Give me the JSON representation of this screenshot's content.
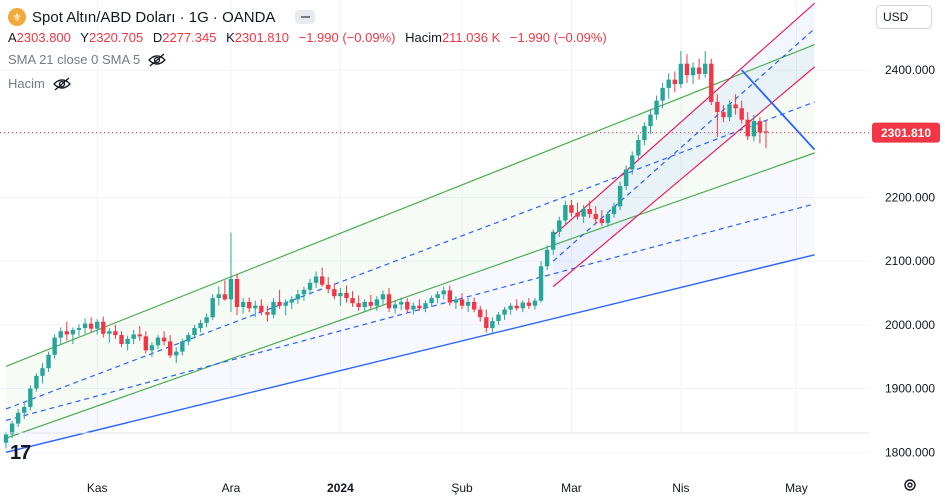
{
  "symbol": {
    "title": "Spot Altın/ABD Doları · 1G · OANDA",
    "icon": "gold-coin-icon"
  },
  "ohlc": {
    "open_label": "A",
    "open": "2303.800",
    "high_label": "Y",
    "high": "2320.705",
    "low_label": "D",
    "low": "2277.345",
    "close_label": "K",
    "close": "2301.810",
    "change": "−1.990 (−0.09%)",
    "volume_label": "Hacim",
    "volume": "211.036 K",
    "volume_change": "−1.990 (−0.09%)"
  },
  "indicators": [
    {
      "label": "SMA 21 close 0 SMA 5"
    },
    {
      "label": "Hacim"
    }
  ],
  "currency": "USD",
  "colors": {
    "up": "#26a69a",
    "down": "#f23645",
    "green_channel": "#4caf50",
    "blue": "#2962ff",
    "red_channel": "#e91e63",
    "grid": "#f0f3fa"
  },
  "chart_data": {
    "type": "candlestick",
    "title": "Spot Altın/ABD Doları · 1G · OANDA",
    "ylim": [
      1780,
      2510
    ],
    "y_ticks": [
      "1800.000",
      "1900.000",
      "2000.000",
      "2100.000",
      "2200.000",
      "2300.000",
      "2400.000"
    ],
    "x_ticks": [
      "Kas",
      "Ara",
      "2024",
      "Şub",
      "Mar",
      "Nis",
      "May"
    ],
    "last_price": "2301.810",
    "candles": [
      [
        1815,
        1832,
        1806,
        1828
      ],
      [
        1828,
        1849,
        1822,
        1845
      ],
      [
        1845,
        1868,
        1840,
        1862
      ],
      [
        1862,
        1878,
        1852,
        1871
      ],
      [
        1871,
        1905,
        1866,
        1900
      ],
      [
        1900,
        1924,
        1895,
        1920
      ],
      [
        1920,
        1940,
        1908,
        1932
      ],
      [
        1932,
        1958,
        1926,
        1953
      ],
      [
        1953,
        1985,
        1947,
        1980
      ],
      [
        1980,
        1996,
        1970,
        1990
      ],
      [
        1990,
        2005,
        1975,
        1985
      ],
      [
        1985,
        1996,
        1970,
        1992
      ],
      [
        1992,
        2001,
        1982,
        1995
      ],
      [
        1995,
        2010,
        1986,
        2002
      ],
      [
        2002,
        2012,
        1988,
        1994
      ],
      [
        1994,
        2009,
        1985,
        2005
      ],
      [
        2005,
        2013,
        1980,
        1986
      ],
      [
        1986,
        1995,
        1972,
        1990
      ],
      [
        1990,
        2000,
        1978,
        1984
      ],
      [
        1984,
        1990,
        1965,
        1970
      ],
      [
        1970,
        1983,
        1960,
        1978
      ],
      [
        1978,
        1992,
        1970,
        1985
      ],
      [
        1985,
        1998,
        1975,
        1982
      ],
      [
        1982,
        1990,
        1955,
        1960
      ],
      [
        1960,
        1973,
        1950,
        1968
      ],
      [
        1968,
        1984,
        1962,
        1980
      ],
      [
        1980,
        1990,
        1968,
        1974
      ],
      [
        1974,
        1984,
        1948,
        1952
      ],
      [
        1952,
        1965,
        1940,
        1958
      ],
      [
        1958,
        1978,
        1952,
        1974
      ],
      [
        1974,
        1988,
        1968,
        1984
      ],
      [
        1984,
        2000,
        1979,
        1995
      ],
      [
        1995,
        2008,
        1988,
        2003
      ],
      [
        2003,
        2018,
        1996,
        2012
      ],
      [
        2012,
        2048,
        2008,
        2042
      ],
      [
        2042,
        2060,
        2030,
        2048
      ],
      [
        2048,
        2070,
        2038,
        2040
      ],
      [
        2040,
        2145,
        2020,
        2072
      ],
      [
        2072,
        2080,
        2015,
        2028
      ],
      [
        2028,
        2042,
        2018,
        2036
      ],
      [
        2036,
        2043,
        2020,
        2026
      ],
      [
        2026,
        2038,
        2012,
        2030
      ],
      [
        2030,
        2040,
        2015,
        2020
      ],
      [
        2020,
        2030,
        2005,
        2016
      ],
      [
        2016,
        2042,
        2010,
        2036
      ],
      [
        2036,
        2055,
        2025,
        2030
      ],
      [
        2030,
        2040,
        2015,
        2035
      ],
      [
        2035,
        2045,
        2025,
        2040
      ],
      [
        2040,
        2055,
        2033,
        2048
      ],
      [
        2048,
        2060,
        2038,
        2055
      ],
      [
        2055,
        2072,
        2048,
        2066
      ],
      [
        2066,
        2084,
        2058,
        2076
      ],
      [
        2076,
        2090,
        2060,
        2063
      ],
      [
        2063,
        2075,
        2050,
        2056
      ],
      [
        2056,
        2065,
        2040,
        2045
      ],
      [
        2045,
        2058,
        2030,
        2050
      ],
      [
        2050,
        2062,
        2035,
        2042
      ],
      [
        2042,
        2053,
        2028,
        2034
      ],
      [
        2034,
        2046,
        2022,
        2028
      ],
      [
        2028,
        2040,
        2020,
        2036
      ],
      [
        2036,
        2047,
        2025,
        2030
      ],
      [
        2030,
        2045,
        2022,
        2040
      ],
      [
        2040,
        2054,
        2032,
        2048
      ],
      [
        2048,
        2058,
        2020,
        2026
      ],
      [
        2026,
        2038,
        2018,
        2032
      ],
      [
        2032,
        2043,
        2023,
        2036
      ],
      [
        2036,
        2042,
        2018,
        2024
      ],
      [
        2024,
        2035,
        2016,
        2030
      ],
      [
        2030,
        2040,
        2022,
        2026
      ],
      [
        2026,
        2038,
        2020,
        2034
      ],
      [
        2034,
        2046,
        2028,
        2042
      ],
      [
        2042,
        2053,
        2034,
        2048
      ],
      [
        2048,
        2060,
        2040,
        2054
      ],
      [
        2054,
        2062,
        2030,
        2035
      ],
      [
        2035,
        2045,
        2025,
        2040
      ],
      [
        2040,
        2050,
        2025,
        2030
      ],
      [
        2030,
        2042,
        2020,
        2036
      ],
      [
        2036,
        2043,
        2020,
        2024
      ],
      [
        2024,
        2030,
        2005,
        2012
      ],
      [
        2012,
        2024,
        1988,
        1995
      ],
      [
        1995,
        2012,
        1985,
        2006
      ],
      [
        2006,
        2020,
        2000,
        2016
      ],
      [
        2016,
        2028,
        2008,
        2024
      ],
      [
        2024,
        2034,
        2016,
        2030
      ],
      [
        2030,
        2040,
        2022,
        2026
      ],
      [
        2026,
        2038,
        2020,
        2035
      ],
      [
        2035,
        2042,
        2025,
        2030
      ],
      [
        2030,
        2042,
        2024,
        2038
      ],
      [
        2038,
        2100,
        2035,
        2092
      ],
      [
        2092,
        2125,
        2086,
        2118
      ],
      [
        2118,
        2150,
        2110,
        2146
      ],
      [
        2146,
        2170,
        2138,
        2164
      ],
      [
        2164,
        2195,
        2158,
        2188
      ],
      [
        2188,
        2196,
        2170,
        2176
      ],
      [
        2176,
        2192,
        2165,
        2170
      ],
      [
        2170,
        2188,
        2160,
        2182
      ],
      [
        2182,
        2195,
        2168,
        2174
      ],
      [
        2174,
        2186,
        2158,
        2166
      ],
      [
        2166,
        2180,
        2155,
        2160
      ],
      [
        2160,
        2178,
        2154,
        2174
      ],
      [
        2174,
        2192,
        2168,
        2186
      ],
      [
        2186,
        2225,
        2180,
        2218
      ],
      [
        2218,
        2250,
        2212,
        2244
      ],
      [
        2244,
        2272,
        2236,
        2266
      ],
      [
        2266,
        2298,
        2260,
        2290
      ],
      [
        2290,
        2318,
        2282,
        2312
      ],
      [
        2312,
        2338,
        2300,
        2330
      ],
      [
        2330,
        2360,
        2322,
        2352
      ],
      [
        2352,
        2380,
        2340,
        2372
      ],
      [
        2372,
        2395,
        2355,
        2385
      ],
      [
        2385,
        2398,
        2365,
        2378
      ],
      [
        2378,
        2430,
        2372,
        2410
      ],
      [
        2410,
        2425,
        2380,
        2392
      ],
      [
        2392,
        2412,
        2378,
        2404
      ],
      [
        2404,
        2418,
        2385,
        2394
      ],
      [
        2394,
        2430,
        2388,
        2410
      ],
      [
        2410,
        2418,
        2345,
        2350
      ],
      [
        2350,
        2362,
        2295,
        2334
      ],
      [
        2334,
        2345,
        2318,
        2326
      ],
      [
        2326,
        2352,
        2320,
        2346
      ],
      [
        2346,
        2362,
        2330,
        2340
      ],
      [
        2340,
        2352,
        2316,
        2322
      ],
      [
        2322,
        2334,
        2290,
        2296
      ],
      [
        2296,
        2330,
        2288,
        2320
      ],
      [
        2320,
        2326,
        2285,
        2302
      ],
      [
        2303.8,
        2320.705,
        2277.345,
        2301.81
      ]
    ],
    "channels": {
      "green_regression": {
        "upper": [
          [
            0,
            1935
          ],
          [
            133,
            2440
          ]
        ],
        "mid": [
          [
            0,
            1822
          ],
          [
            133,
            2270
          ]
        ],
        "lower": [
          [
            0,
            1800
          ],
          [
            133,
            2110
          ]
        ]
      },
      "blue_dashed": {
        "upper": [
          [
            0,
            1868
          ],
          [
            133,
            2350
          ]
        ],
        "lower": [
          [
            0,
            1850
          ],
          [
            133,
            2190
          ]
        ]
      },
      "red_channel": {
        "upper": [
          [
            90,
            2140
          ],
          [
            133,
            2505
          ]
        ],
        "mid": [
          [
            90,
            2100
          ],
          [
            133,
            2465
          ]
        ],
        "lower": [
          [
            90,
            2060
          ],
          [
            133,
            2405
          ]
        ]
      },
      "trend_line": [
        [
          121,
          2400
        ],
        [
          133,
          2275
        ]
      ]
    }
  }
}
